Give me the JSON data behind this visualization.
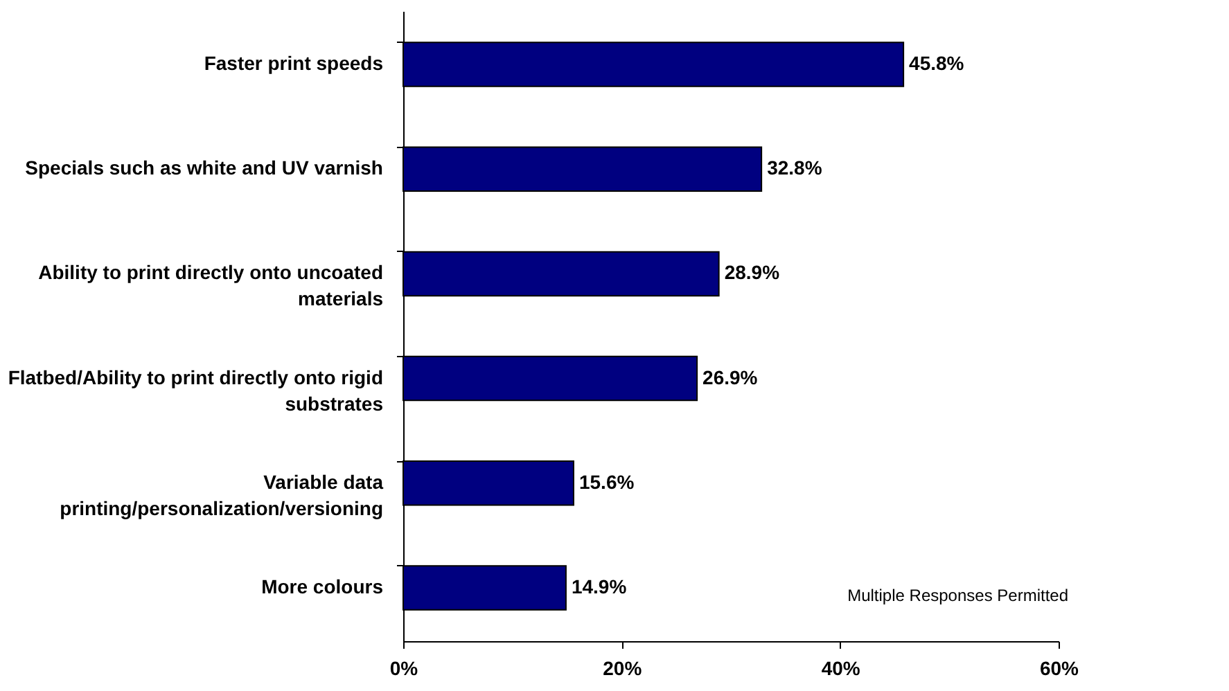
{
  "chart_data": {
    "type": "bar",
    "orientation": "horizontal",
    "categories": [
      "Faster print speeds",
      "Specials such as white and UV varnish",
      "Ability to print directly onto uncoated materials",
      "Flatbed/Ability to print directly onto rigid substrates",
      "Variable data printing/personalization/versioning",
      "More colours"
    ],
    "values": [
      45.8,
      32.8,
      28.9,
      26.9,
      15.6,
      14.9
    ],
    "value_labels": [
      "45.8%",
      "32.8%",
      "28.9%",
      "26.9%",
      "15.6%",
      "14.9%"
    ],
    "color": "#000080",
    "xlim": [
      0,
      60
    ],
    "xticks": [
      {
        "value": 0,
        "label": "0%"
      },
      {
        "value": 20,
        "label": "20%"
      },
      {
        "value": 40,
        "label": "40%"
      },
      {
        "value": 60,
        "label": "60%"
      }
    ],
    "grid": false,
    "annotations": [
      "Multiple Responses Permitted"
    ]
  }
}
